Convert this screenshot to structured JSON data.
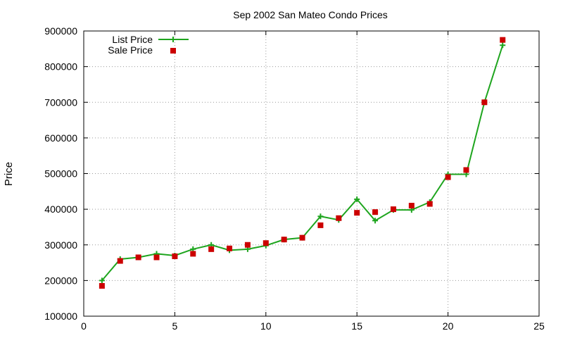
{
  "chart_data": {
    "type": "line",
    "title": "Sep 2002 San Mateo Condo Prices",
    "xlabel": "",
    "ylabel": "Price",
    "xlim": [
      0,
      25
    ],
    "ylim": [
      100000,
      900000
    ],
    "x_ticks": [
      0,
      5,
      10,
      15,
      20,
      25
    ],
    "y_ticks": [
      100000,
      200000,
      300000,
      400000,
      500000,
      600000,
      700000,
      800000,
      900000
    ],
    "grid": true,
    "legend_position": "top-left",
    "x": [
      1,
      2,
      3,
      4,
      5,
      6,
      7,
      8,
      9,
      10,
      11,
      12,
      13,
      14,
      15,
      16,
      17,
      18,
      19,
      20,
      21,
      22,
      23
    ],
    "series": [
      {
        "name": "List Price",
        "style": "line+cross",
        "color": "#1ea51e",
        "values": [
          200000,
          260000,
          265000,
          275000,
          270000,
          288000,
          300000,
          285000,
          288000,
          298000,
          315000,
          320000,
          380000,
          370000,
          428000,
          368000,
          398000,
          398000,
          420000,
          498000,
          498000,
          700000,
          860000
        ]
      },
      {
        "name": "Sale Price",
        "style": "square",
        "color": "#cc0000",
        "values": [
          185000,
          255000,
          265000,
          265000,
          268000,
          275000,
          288000,
          290000,
          300000,
          305000,
          315000,
          320000,
          355000,
          375000,
          390000,
          392000,
          400000,
          410000,
          415000,
          490000,
          510000,
          700000,
          875000
        ]
      }
    ]
  }
}
